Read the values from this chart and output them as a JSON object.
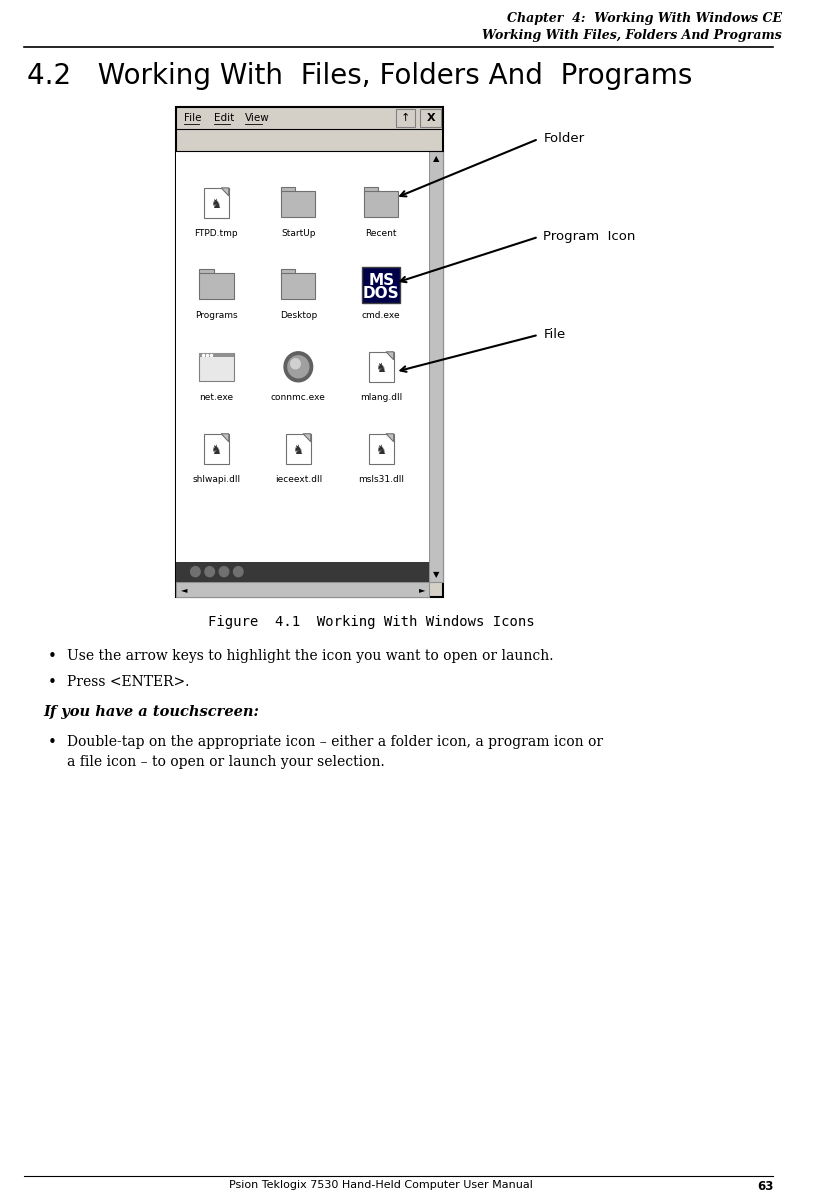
{
  "bg_color": "#ffffff",
  "header_line1": "Chapter  4:  Working With Windows CE",
  "header_line2": "Working With Files, Folders And Programs",
  "section_title": "4.2   Working With  Files, Folders And  Programs",
  "figure_caption": "Figure  4.1  Working With Windows Icons",
  "bullet1": "Use the arrow keys to highlight the icon you want to open or launch.",
  "bullet2": "Press <ENTER>.",
  "touchscreen_header": "If you have a touchscreen:",
  "bullet3_line1": "Double-tap on the appropriate icon – either a folder icon, a program icon or",
  "bullet3_line2": "a file icon – to open or launch your selection.",
  "label_folder": "Folder",
  "label_program": "Program  Icon",
  "label_file": "File",
  "footer_text": "Psion Teklogix 7530 Hand-Held Computer User Manual",
  "footer_page": "63",
  "file_items_row1": [
    "FTPD.tmp",
    "StartUp",
    "Recent"
  ],
  "file_items_row2": [
    "Programs",
    "Desktop",
    "cmd.exe"
  ],
  "file_items_row3": [
    "net.exe",
    "connmc.exe",
    "mlang.dll"
  ],
  "file_items_row4": [
    "shlwapi.dll",
    "ieceext.dll",
    "msls31.dll"
  ]
}
